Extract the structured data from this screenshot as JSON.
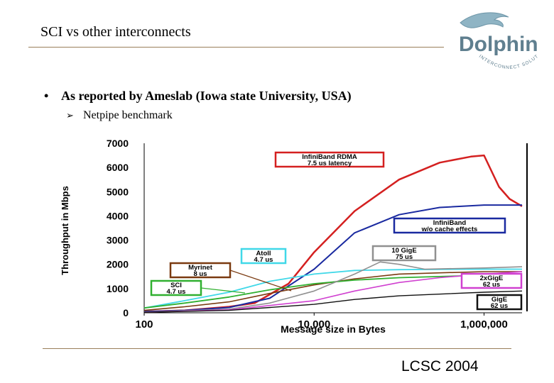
{
  "slide": {
    "title": "SCI vs other interconnects",
    "bullet": "As reported by Ameslab (Iowa state University, USA)",
    "bullet_marker": "•",
    "sub_bullet": "Netpipe benchmark",
    "sub_marker": "➢",
    "footer": "LCSC 2004",
    "logo_word": "Dolphin",
    "logo_tagline": "INTERCONNECT SOLUTIONS",
    "accent_color": "#9a7f5a",
    "logo_color": "#5f7f8f"
  },
  "chart_data": {
    "type": "line",
    "title": "",
    "xlabel": "Message size in Bytes",
    "ylabel": "Throughput in Mbps",
    "x_scale": "log",
    "xlim": [
      100,
      2800000
    ],
    "ylim": [
      0,
      7000
    ],
    "x_ticks": [
      100,
      10000,
      1000000
    ],
    "x_tick_labels": [
      "100",
      "10,000",
      "1,000,000"
    ],
    "y_ticks": [
      0,
      1000,
      2000,
      3000,
      4000,
      5000,
      6000,
      7000
    ],
    "y_tick_labels": [
      "0",
      "1000",
      "2000",
      "3000",
      "4000",
      "5000",
      "6000",
      "7000"
    ],
    "series": [
      {
        "name": "InfiniBand RDMA",
        "color": "#d42020",
        "width": 2.5,
        "x": [
          100,
          300,
          1000,
          2000,
          5000,
          10000,
          30000,
          100000,
          300000,
          700000,
          1000000,
          1500000,
          2000000,
          2800000
        ],
        "y": [
          50,
          100,
          250,
          400,
          1200,
          2500,
          4200,
          5500,
          6200,
          6450,
          6500,
          5200,
          4700,
          4400
        ]
      },
      {
        "name": "InfiniBand",
        "color": "#1a2aa0",
        "width": 2,
        "x": [
          100,
          300,
          1000,
          3000,
          10000,
          30000,
          100000,
          300000,
          1000000,
          2800000
        ],
        "y": [
          50,
          100,
          220,
          600,
          1800,
          3300,
          4050,
          4350,
          4450,
          4450
        ]
      },
      {
        "name": "Atoll",
        "color": "#40d8e8",
        "width": 1.8,
        "x": [
          100,
          300,
          1000,
          3000,
          10000,
          30000,
          100000,
          1000000,
          2800000
        ],
        "y": [
          200,
          500,
          850,
          1300,
          1600,
          1750,
          1780,
          1800,
          1800
        ]
      },
      {
        "name": "Myrinet",
        "color": "#7a3a10",
        "width": 1.6,
        "x": [
          100,
          300,
          1000,
          3000,
          10000,
          30000,
          100000,
          300000,
          1000000,
          2800000
        ],
        "y": [
          100,
          250,
          450,
          800,
          1150,
          1400,
          1600,
          1650,
          1700,
          1700
        ]
      },
      {
        "name": "SCI",
        "color": "#30b030",
        "width": 1.8,
        "x": [
          100,
          300,
          1000,
          3000,
          10000,
          30000,
          100000,
          1000000,
          2800000
        ],
        "y": [
          200,
          400,
          650,
          950,
          1200,
          1350,
          1450,
          1550,
          1600
        ]
      },
      {
        "name": "10 GigE",
        "color": "#909090",
        "width": 1.6,
        "x": [
          100,
          1000,
          3000,
          10000,
          30000,
          60000,
          100000,
          200000,
          1000000,
          2800000
        ],
        "y": [
          30,
          150,
          400,
          900,
          1600,
          2100,
          2000,
          1800,
          1850,
          1900
        ]
      },
      {
        "name": "2xGigE",
        "color": "#d040d0",
        "width": 1.6,
        "x": [
          100,
          1000,
          10000,
          30000,
          100000,
          300000,
          1000000,
          2800000
        ],
        "y": [
          20,
          120,
          500,
          900,
          1250,
          1450,
          1600,
          1700
        ]
      },
      {
        "name": "GigE",
        "color": "#111111",
        "width": 1.4,
        "x": [
          100,
          1000,
          10000,
          30000,
          100000,
          1000000,
          2800000
        ],
        "y": [
          20,
          100,
          350,
          550,
          700,
          850,
          900
        ]
      }
    ],
    "annotations": [
      {
        "series": "InfiniBand RDMA",
        "lines": [
          "InfiniBand RDMA",
          "7.5 us latency"
        ]
      },
      {
        "series": "InfiniBand",
        "lines": [
          "InfiniBand",
          "w/o cache effects"
        ]
      },
      {
        "series": "Atoll",
        "lines": [
          "Atoll",
          "4.7 us"
        ]
      },
      {
        "series": "10 GigE",
        "lines": [
          "10 GigE",
          "75 us"
        ]
      },
      {
        "series": "Myrinet",
        "lines": [
          "Myrinet",
          "8 us"
        ]
      },
      {
        "series": "SCI",
        "lines": [
          "SCI",
          "4.7 us"
        ]
      },
      {
        "series": "2xGigE",
        "lines": [
          "2xGigE",
          "62 us"
        ]
      },
      {
        "series": "GigE",
        "lines": [
          "GigE",
          "62 us"
        ]
      }
    ]
  }
}
